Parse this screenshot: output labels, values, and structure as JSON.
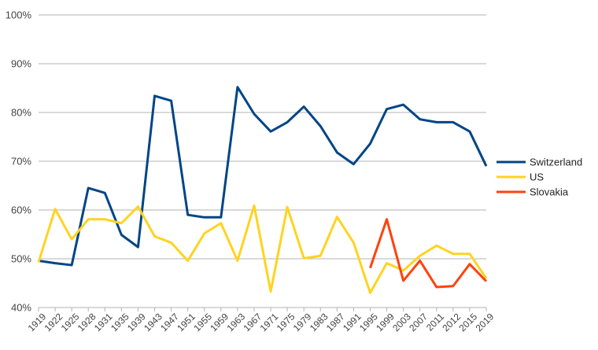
{
  "chart_data": {
    "type": "line",
    "x": [
      "1919",
      "1922",
      "1925",
      "1928",
      "1931",
      "1935",
      "1939",
      "1943",
      "1947",
      "1951",
      "1955",
      "1959",
      "1963",
      "1967",
      "1971",
      "1975",
      "1979",
      "1983",
      "1987",
      "1991",
      "1995",
      "1999",
      "2003",
      "2007",
      "2011",
      "2012",
      "2015",
      "2019"
    ],
    "series": [
      {
        "name": "Switzerland",
        "color": "#004586",
        "values": [
          49.6,
          49.1,
          48.7,
          64.5,
          63.5,
          54.9,
          52.4,
          83.4,
          82.4,
          59.0,
          58.5,
          58.5,
          85.2,
          79.7,
          76.1,
          78.0,
          81.2,
          77.2,
          71.8,
          69.4,
          73.6,
          80.7,
          81.6,
          78.6,
          78.0,
          78.0,
          76.1,
          69.0
        ]
      },
      {
        "name": "US",
        "color": "#ffd320",
        "values": [
          49.3,
          60.2,
          54.0,
          58.1,
          58.1,
          57.3,
          60.7,
          54.6,
          53.3,
          49.6,
          55.2,
          57.3,
          49.6,
          60.9,
          43.3,
          60.6,
          50.1,
          50.6,
          58.6,
          53.3,
          43.0,
          49.1,
          47.6,
          50.6,
          52.7,
          51.0,
          51.0,
          46.0
        ]
      },
      {
        "name": "Slovakia",
        "color": "#ff420e",
        "values": [
          null,
          null,
          null,
          null,
          null,
          null,
          null,
          null,
          null,
          null,
          null,
          null,
          null,
          null,
          null,
          null,
          null,
          null,
          null,
          null,
          48.1,
          58.1,
          45.5,
          49.6,
          44.2,
          44.4,
          48.9,
          45.4
        ]
      }
    ],
    "ylim": [
      40,
      100
    ],
    "yticks": [
      40,
      50,
      60,
      70,
      80,
      90,
      100
    ],
    "ytick_suffix": "%",
    "grid": true,
    "legend": "right",
    "title": "",
    "xlabel": "",
    "ylabel": ""
  }
}
